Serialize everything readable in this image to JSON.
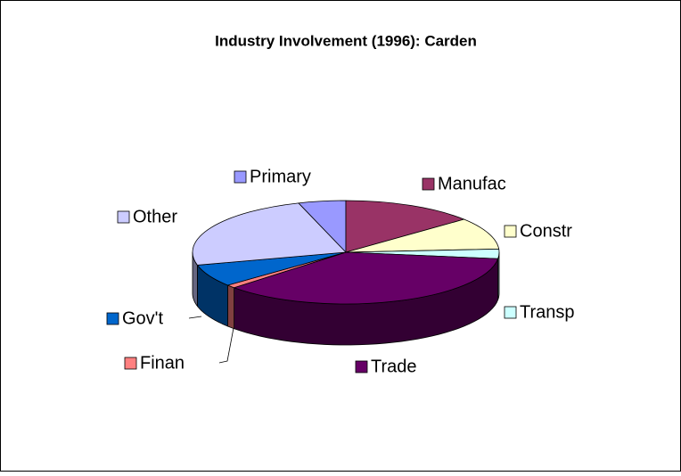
{
  "chart_data": {
    "type": "pie3d",
    "title": "Industry Involvement (1996): Carden",
    "categories": [
      "Primary",
      "Manufac",
      "Constr",
      "Transp",
      "Trade",
      "Finan",
      "Gov't",
      "Other"
    ],
    "values": [
      5,
      14,
      10,
      3,
      36,
      1,
      7,
      24
    ],
    "colors": [
      "#9999ff",
      "#993366",
      "#ffffcc",
      "#ccffff",
      "#660066",
      "#ff8080",
      "#0066cc",
      "#ccccff"
    ]
  }
}
